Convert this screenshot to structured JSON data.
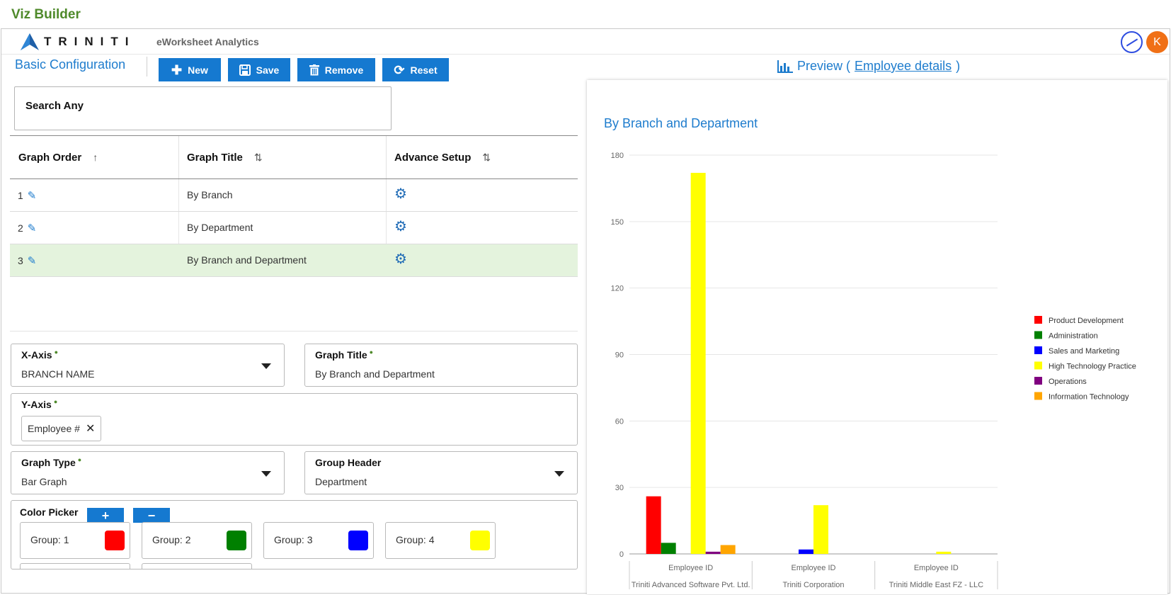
{
  "app": {
    "title": "Viz Builder",
    "logo_text": "TRINITI",
    "subtitle": "eWorksheet Analytics",
    "avatar_initial": "K"
  },
  "toolbar": {
    "section_title": "Basic Configuration",
    "new_label": "New",
    "save_label": "Save",
    "remove_label": "Remove",
    "reset_label": "Reset"
  },
  "search": {
    "label": "Search Any"
  },
  "table": {
    "columns": [
      "Graph Order",
      "Graph Title",
      "Advance Setup"
    ],
    "rows": [
      {
        "order": "1",
        "title": "By Branch"
      },
      {
        "order": "2",
        "title": "By Department"
      },
      {
        "order": "3",
        "title": "By Branch and Department"
      }
    ]
  },
  "form": {
    "x_axis": {
      "label": "X-Axis",
      "value": "BRANCH NAME"
    },
    "graph_title": {
      "label": "Graph Title",
      "value": "By Branch and Department"
    },
    "y_axis": {
      "label": "Y-Axis",
      "chip": "Employee #"
    },
    "graph_type": {
      "label": "Graph Type",
      "value": "Bar Graph"
    },
    "group_header": {
      "label": "Group Header",
      "value": "Department"
    },
    "color_picker": {
      "label": "Color Picker",
      "groups": [
        {
          "label": "Group: 1",
          "color": "#ff0000"
        },
        {
          "label": "Group: 2",
          "color": "#008000"
        },
        {
          "label": "Group: 3",
          "color": "#0000ff"
        },
        {
          "label": "Group: 4",
          "color": "#ffff00"
        }
      ]
    }
  },
  "preview": {
    "label": "Preview (",
    "link": "Employee details",
    "close": ")"
  },
  "chart_data": {
    "type": "bar",
    "title": "By Branch and Department",
    "xlabel": "",
    "ylabel": "",
    "ylim": [
      0,
      180
    ],
    "yticks": [
      0,
      30,
      60,
      90,
      120,
      150,
      180
    ],
    "grid": true,
    "legend_position": "right",
    "x_sub_label": "Employee ID",
    "categories": [
      "Triniti Advanced Software Pvt. Ltd.",
      "Triniti Corporation",
      "Triniti Middle East FZ - LLC"
    ],
    "series": [
      {
        "name": "Product Development",
        "color": "#ff0000",
        "values": [
          26,
          0,
          0
        ]
      },
      {
        "name": "Administration",
        "color": "#008000",
        "values": [
          5,
          0,
          0
        ]
      },
      {
        "name": "Sales and Marketing",
        "color": "#0000ff",
        "values": [
          0,
          2,
          0
        ]
      },
      {
        "name": "High Technology Practice",
        "color": "#ffff00",
        "values": [
          172,
          22,
          1
        ]
      },
      {
        "name": "Operations",
        "color": "#800080",
        "values": [
          1,
          0,
          0
        ]
      },
      {
        "name": "Information Technology",
        "color": "#ffa500",
        "values": [
          4,
          0,
          0
        ]
      }
    ]
  }
}
